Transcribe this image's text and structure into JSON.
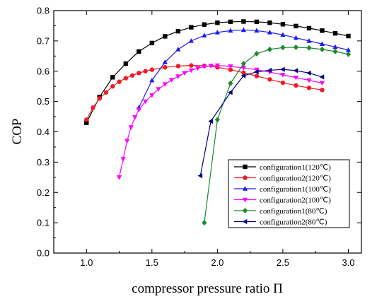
{
  "chart_data": {
    "type": "line",
    "xlabel": "compressor pressure ratio Π",
    "ylabel": "COP",
    "xlim": [
      0.75,
      3.1
    ],
    "ylim": [
      0.0,
      0.8
    ],
    "x_ticks": [
      "1.0",
      "1.5",
      "2.0",
      "2.5",
      "3.0"
    ],
    "y_ticks": [
      "0.0",
      "0.1",
      "0.2",
      "0.3",
      "0.4",
      "0.5",
      "0.6",
      "0.7",
      "0.8"
    ],
    "legend_position": "lower-right",
    "grid": false,
    "series": [
      {
        "name": "configuration1(120℃)",
        "color": "#000000",
        "marker": "square",
        "x": [
          1.0,
          1.1,
          1.2,
          1.3,
          1.4,
          1.5,
          1.6,
          1.7,
          1.8,
          1.9,
          2.0,
          2.1,
          2.2,
          2.3,
          2.4,
          2.5,
          2.6,
          2.7,
          2.8,
          2.9,
          3.0
        ],
        "y": [
          0.43,
          0.515,
          0.58,
          0.625,
          0.665,
          0.693,
          0.715,
          0.732,
          0.745,
          0.754,
          0.76,
          0.763,
          0.764,
          0.763,
          0.76,
          0.755,
          0.749,
          0.742,
          0.734,
          0.725,
          0.716
        ]
      },
      {
        "name": "configuration2(120℃)",
        "color": "#ee1c24",
        "marker": "circle",
        "x": [
          1.0,
          1.05,
          1.1,
          1.15,
          1.2,
          1.25,
          1.3,
          1.35,
          1.4,
          1.45,
          1.5,
          1.6,
          1.7,
          1.8,
          1.9,
          2.0,
          2.1,
          2.2,
          2.3,
          2.4,
          2.5,
          2.6,
          2.7,
          2.8
        ],
        "y": [
          0.44,
          0.48,
          0.51,
          0.53,
          0.55,
          0.565,
          0.577,
          0.586,
          0.594,
          0.6,
          0.605,
          0.613,
          0.617,
          0.619,
          0.618,
          0.613,
          0.605,
          0.595,
          0.584,
          0.573,
          0.562,
          0.553,
          0.545,
          0.538
        ]
      },
      {
        "name": "configuration1(100℃)",
        "color": "#1c1cf0",
        "marker": "triangle-up",
        "x": [
          1.4,
          1.5,
          1.6,
          1.7,
          1.8,
          1.9,
          2.0,
          2.1,
          2.2,
          2.3,
          2.4,
          2.5,
          2.6,
          2.7,
          2.8,
          2.9,
          3.0
        ],
        "y": [
          0.48,
          0.57,
          0.63,
          0.672,
          0.7,
          0.718,
          0.728,
          0.734,
          0.736,
          0.734,
          0.728,
          0.72,
          0.71,
          0.7,
          0.69,
          0.68,
          0.67
        ]
      },
      {
        "name": "configuration2(100℃)",
        "color": "#ff00ff",
        "marker": "triangle-down",
        "x": [
          1.25,
          1.28,
          1.31,
          1.34,
          1.37,
          1.4,
          1.45,
          1.5,
          1.55,
          1.6,
          1.65,
          1.7,
          1.75,
          1.8,
          1.85,
          1.9,
          1.95,
          2.0,
          2.1,
          2.2,
          2.3,
          2.4,
          2.5,
          2.6,
          2.7,
          2.8
        ],
        "y": [
          0.25,
          0.31,
          0.37,
          0.415,
          0.448,
          0.473,
          0.5,
          0.521,
          0.541,
          0.557,
          0.571,
          0.583,
          0.594,
          0.603,
          0.61,
          0.615,
          0.618,
          0.619,
          0.616,
          0.611,
          0.605,
          0.597,
          0.588,
          0.579,
          0.57,
          0.561
        ]
      },
      {
        "name": "configuration1(80℃)",
        "color": "#1a8a2e",
        "marker": "diamond",
        "x": [
          1.9,
          2.0,
          2.1,
          2.2,
          2.3,
          2.4,
          2.5,
          2.6,
          2.7,
          2.8,
          2.9,
          3.0
        ],
        "y": [
          0.1,
          0.44,
          0.56,
          0.625,
          0.658,
          0.672,
          0.678,
          0.679,
          0.677,
          0.672,
          0.665,
          0.656
        ]
      },
      {
        "name": "configuration2(80℃)",
        "color": "#00007f",
        "marker": "triangle-left",
        "x": [
          1.87,
          1.95,
          2.1,
          2.2,
          2.3,
          2.4,
          2.5,
          2.6,
          2.7,
          2.8
        ],
        "y": [
          0.255,
          0.435,
          0.53,
          0.585,
          0.598,
          0.603,
          0.606,
          0.602,
          0.594,
          0.581
        ]
      }
    ]
  }
}
